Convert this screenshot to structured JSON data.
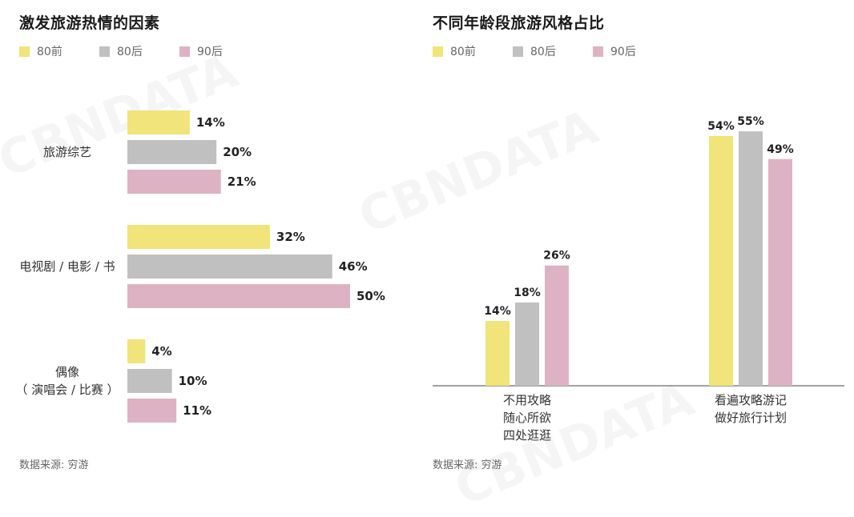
{
  "watermark": "CBNDATA",
  "colors": {
    "80前": "#f0e47a",
    "80后": "#c0c0c0",
    "90后": "#ddb3c4"
  },
  "chart_data": [
    {
      "type": "bar",
      "orientation": "horizontal",
      "title": "激发旅游热情的因素",
      "legend": [
        "80前",
        "80后",
        "90后"
      ],
      "legend_position": "top-left",
      "categories": [
        [
          "旅游综艺"
        ],
        [
          "电视剧 / 电影 / 书"
        ],
        [
          "偶像",
          "（ 演唱会 / 比赛 ）"
        ]
      ],
      "series": [
        {
          "name": "80前",
          "values": [
            14,
            32,
            4
          ],
          "labels": [
            "14%",
            "32%",
            "4%"
          ]
        },
        {
          "name": "80后",
          "values": [
            20,
            46,
            10
          ],
          "labels": [
            "20%",
            "46%",
            "10%"
          ]
        },
        {
          "name": "90后",
          "values": [
            21,
            50,
            11
          ],
          "labels": [
            "21%",
            "50%",
            "11%"
          ]
        }
      ],
      "unit": "%",
      "grid": false,
      "source": "数据来源: 穷游"
    },
    {
      "type": "bar",
      "orientation": "vertical",
      "title": "不同年龄段旅游风格占比",
      "legend": [
        "80前",
        "80后",
        "90后"
      ],
      "legend_position": "top-left",
      "categories": [
        [
          "不用攻略",
          "随心所欲",
          "四处逛逛"
        ],
        [
          "看遍攻略游记",
          "做好旅行计划"
        ]
      ],
      "series": [
        {
          "name": "80前",
          "values": [
            14,
            54
          ],
          "labels": [
            "14%",
            "54%"
          ]
        },
        {
          "name": "80后",
          "values": [
            18,
            55
          ],
          "labels": [
            "18%",
            "55%"
          ]
        },
        {
          "name": "90后",
          "values": [
            26,
            49
          ],
          "labels": [
            "26%",
            "49%"
          ]
        }
      ],
      "unit": "%",
      "grid": false,
      "source": "数据来源: 穷游"
    }
  ]
}
